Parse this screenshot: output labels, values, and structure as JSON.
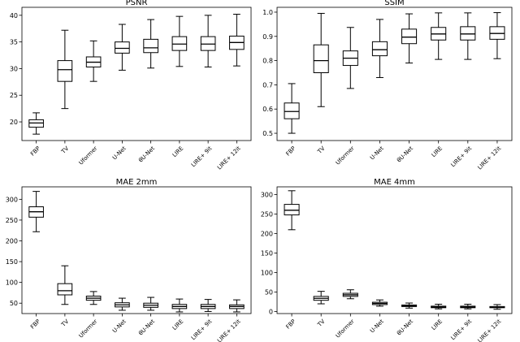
{
  "chart_data": [
    {
      "type": "box",
      "title": "PSNR",
      "categories": [
        "FBP",
        "TV",
        "Uformer",
        "U-Net",
        "θU-Net",
        "LIRE",
        "LIRE+ 9it",
        "LIRE+ 12it"
      ],
      "ylim": [
        16.5,
        41.5
      ],
      "yticks": [
        20,
        25,
        30,
        35,
        40
      ],
      "boxes": [
        {
          "whislo": 17.7,
          "q1": 19.0,
          "med": 19.8,
          "q3": 20.4,
          "whishi": 21.7
        },
        {
          "whislo": 22.5,
          "q1": 27.6,
          "med": 29.8,
          "q3": 31.5,
          "whishi": 37.2
        },
        {
          "whislo": 27.6,
          "q1": 30.3,
          "med": 31.2,
          "q3": 32.2,
          "whishi": 35.2
        },
        {
          "whislo": 29.7,
          "q1": 32.9,
          "med": 33.8,
          "q3": 35.0,
          "whishi": 38.3
        },
        {
          "whislo": 30.1,
          "q1": 33.0,
          "med": 33.9,
          "q3": 35.5,
          "whishi": 39.2
        },
        {
          "whislo": 30.4,
          "q1": 33.4,
          "med": 34.6,
          "q3": 36.0,
          "whishi": 39.8
        },
        {
          "whislo": 30.3,
          "q1": 33.4,
          "med": 34.6,
          "q3": 36.0,
          "whishi": 40.0
        },
        {
          "whislo": 30.5,
          "q1": 33.6,
          "med": 34.9,
          "q3": 36.1,
          "whishi": 40.2
        }
      ]
    },
    {
      "type": "box",
      "title": "SSIM",
      "categories": [
        "FBP",
        "TV",
        "Uformer",
        "U-Net",
        "θU-Net",
        "LIRE",
        "LIRE+ 9it",
        "LIRE+ 12it"
      ],
      "ylim": [
        0.47,
        1.02
      ],
      "yticks": [
        0.5,
        0.6,
        0.7,
        0.8,
        0.9,
        1.0
      ],
      "boxes": [
        {
          "whislo": 0.5,
          "q1": 0.56,
          "med": 0.59,
          "q3": 0.625,
          "whishi": 0.705
        },
        {
          "whislo": 0.61,
          "q1": 0.75,
          "med": 0.8,
          "q3": 0.865,
          "whishi": 0.995
        },
        {
          "whislo": 0.685,
          "q1": 0.78,
          "med": 0.81,
          "q3": 0.84,
          "whishi": 0.937
        },
        {
          "whislo": 0.73,
          "q1": 0.82,
          "med": 0.845,
          "q3": 0.878,
          "whishi": 0.97
        },
        {
          "whislo": 0.79,
          "q1": 0.87,
          "med": 0.897,
          "q3": 0.93,
          "whishi": 0.993
        },
        {
          "whislo": 0.805,
          "q1": 0.885,
          "med": 0.91,
          "q3": 0.937,
          "whishi": 0.997
        },
        {
          "whislo": 0.805,
          "q1": 0.885,
          "med": 0.91,
          "q3": 0.94,
          "whishi": 0.997
        },
        {
          "whislo": 0.808,
          "q1": 0.888,
          "med": 0.912,
          "q3": 0.94,
          "whishi": 0.998
        }
      ]
    },
    {
      "type": "box",
      "title": "MAE 2mm",
      "categories": [
        "FBP",
        "TV",
        "Uformer",
        "U-Net",
        "θU-Net",
        "LIRE",
        "LIRE+ 9it",
        "LIRE+ 12it"
      ],
      "ylim": [
        25,
        330
      ],
      "yticks": [
        50,
        100,
        150,
        200,
        250,
        300
      ],
      "boxes": [
        {
          "whislo": 222,
          "q1": 257,
          "med": 270,
          "q3": 282,
          "whishi": 319
        },
        {
          "whislo": 47,
          "q1": 70,
          "med": 80,
          "q3": 97,
          "whishi": 140
        },
        {
          "whislo": 47,
          "q1": 57,
          "med": 62,
          "q3": 67,
          "whishi": 78
        },
        {
          "whislo": 33,
          "q1": 41,
          "med": 46,
          "q3": 51,
          "whishi": 62
        },
        {
          "whislo": 33,
          "q1": 40,
          "med": 45,
          "q3": 50,
          "whishi": 64
        },
        {
          "whislo": 29,
          "q1": 37,
          "med": 42,
          "q3": 47,
          "whishi": 60
        },
        {
          "whislo": 30,
          "q1": 37,
          "med": 42,
          "q3": 47,
          "whishi": 59
        },
        {
          "whislo": 29,
          "q1": 37,
          "med": 42,
          "q3": 46,
          "whishi": 58
        }
      ]
    },
    {
      "type": "box",
      "title": "MAE 4mm",
      "categories": [
        "FBP",
        "TV",
        "Uformer",
        "U-Net",
        "θU-Net",
        "LIRE",
        "LIRE+ 9it",
        "LIRE+ 12it"
      ],
      "ylim": [
        -5,
        320
      ],
      "yticks": [
        0,
        50,
        100,
        150,
        200,
        250,
        300
      ],
      "boxes": [
        {
          "whislo": 210,
          "q1": 248,
          "med": 260,
          "q3": 275,
          "whishi": 310
        },
        {
          "whislo": 20,
          "q1": 29,
          "med": 34,
          "q3": 39,
          "whishi": 52
        },
        {
          "whislo": 33,
          "q1": 39,
          "med": 43,
          "q3": 47,
          "whishi": 56
        },
        {
          "whislo": 14,
          "q1": 18,
          "med": 21,
          "q3": 24,
          "whishi": 30
        },
        {
          "whislo": 9,
          "q1": 13,
          "med": 15,
          "q3": 17,
          "whishi": 22
        },
        {
          "whislo": 7,
          "q1": 10,
          "med": 12,
          "q3": 14,
          "whishi": 19
        },
        {
          "whislo": 7,
          "q1": 10,
          "med": 12,
          "q3": 14,
          "whishi": 19
        },
        {
          "whislo": 6,
          "q1": 10,
          "med": 11,
          "q3": 13,
          "whishi": 18
        }
      ]
    }
  ]
}
